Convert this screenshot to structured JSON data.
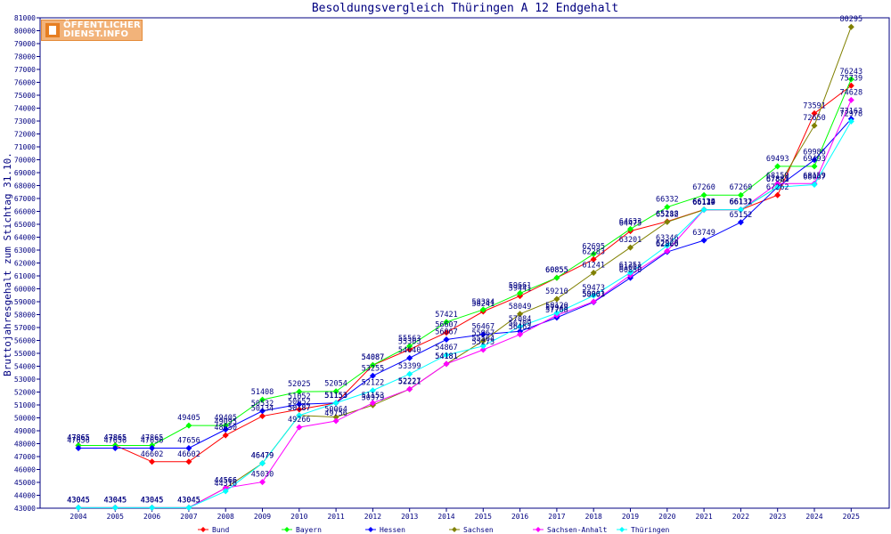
{
  "chart_data": {
    "type": "line",
    "title": "Besoldungsvergleich Thüringen A 12 Endgehalt",
    "ylabel": "Bruttojahresgehalt zum Stichtag 31.10.",
    "xlabel": "",
    "x": [
      2004,
      2005,
      2006,
      2007,
      2008,
      2009,
      2010,
      2011,
      2012,
      2013,
      2014,
      2015,
      2016,
      2017,
      2018,
      2019,
      2020,
      2021,
      2022,
      2023,
      2024,
      2025
    ],
    "ylim": [
      43000,
      81000
    ],
    "ytick_step": 1000,
    "grid": false,
    "legend_position": "bottom",
    "series": [
      {
        "name": "Bund",
        "color": "#ff0000",
        "values": [
          47865,
          47865,
          46602,
          46602,
          48650,
          50134,
          50652,
          51153,
          54087,
          55303,
          56607,
          58241,
          59441,
          60855,
          62283,
          64475,
          65218,
          66134,
          66131,
          67262,
          73591,
          75739
        ]
      },
      {
        "name": "Bayern",
        "color": "#00ff00",
        "values": [
          47865,
          47865,
          47865,
          49405,
          49405,
          51408,
          52025,
          52054,
          54087,
          55563,
          57421,
          58384,
          59661,
          60855,
          62695,
          64633,
          66332,
          67260,
          67260,
          69493,
          69493,
          76243
        ]
      },
      {
        "name": "Hessen",
        "color": "#0000ff",
        "values": [
          47656,
          47656,
          47656,
          47656,
          49095,
          50532,
          51052,
          51153,
          53255,
          54640,
          56067,
          56467,
          56709,
          57768,
          58963,
          60850,
          62860,
          63749,
          65152,
          67883,
          69986,
          73163
        ]
      },
      {
        "name": "Sachsen",
        "color": "#808000",
        "values": [
          43045,
          43045,
          43045,
          43045,
          44566,
          46479,
          50187,
          50064,
          50979,
          52227,
          54181,
          55967,
          58049,
          59210,
          61241,
          63201,
          65182,
          66119,
          66132,
          67882,
          72650,
          80295
        ]
      },
      {
        "name": "Sachsen-Anhalt",
        "color": "#ff00ff",
        "values": [
          43045,
          43045,
          43045,
          43045,
          44566,
          45030,
          49266,
          49756,
          51153,
          52221,
          54181,
          55275,
          56462,
          57948,
          59001,
          61058,
          62928,
          66124,
          66131,
          68159,
          68159,
          74628
        ]
      },
      {
        "name": "Thüringen",
        "color": "#00ffff",
        "values": [
          43045,
          43045,
          43045,
          43045,
          44316,
          46479,
          50187,
          51153,
          52122,
          53399,
          54867,
          55564,
          57084,
          58120,
          59473,
          61251,
          63346,
          66132,
          66132,
          67882,
          68067,
          72978
        ]
      }
    ]
  },
  "logo": {
    "line1": "ÖFFENTLICHER",
    "line2": "DIENST.INFO"
  }
}
